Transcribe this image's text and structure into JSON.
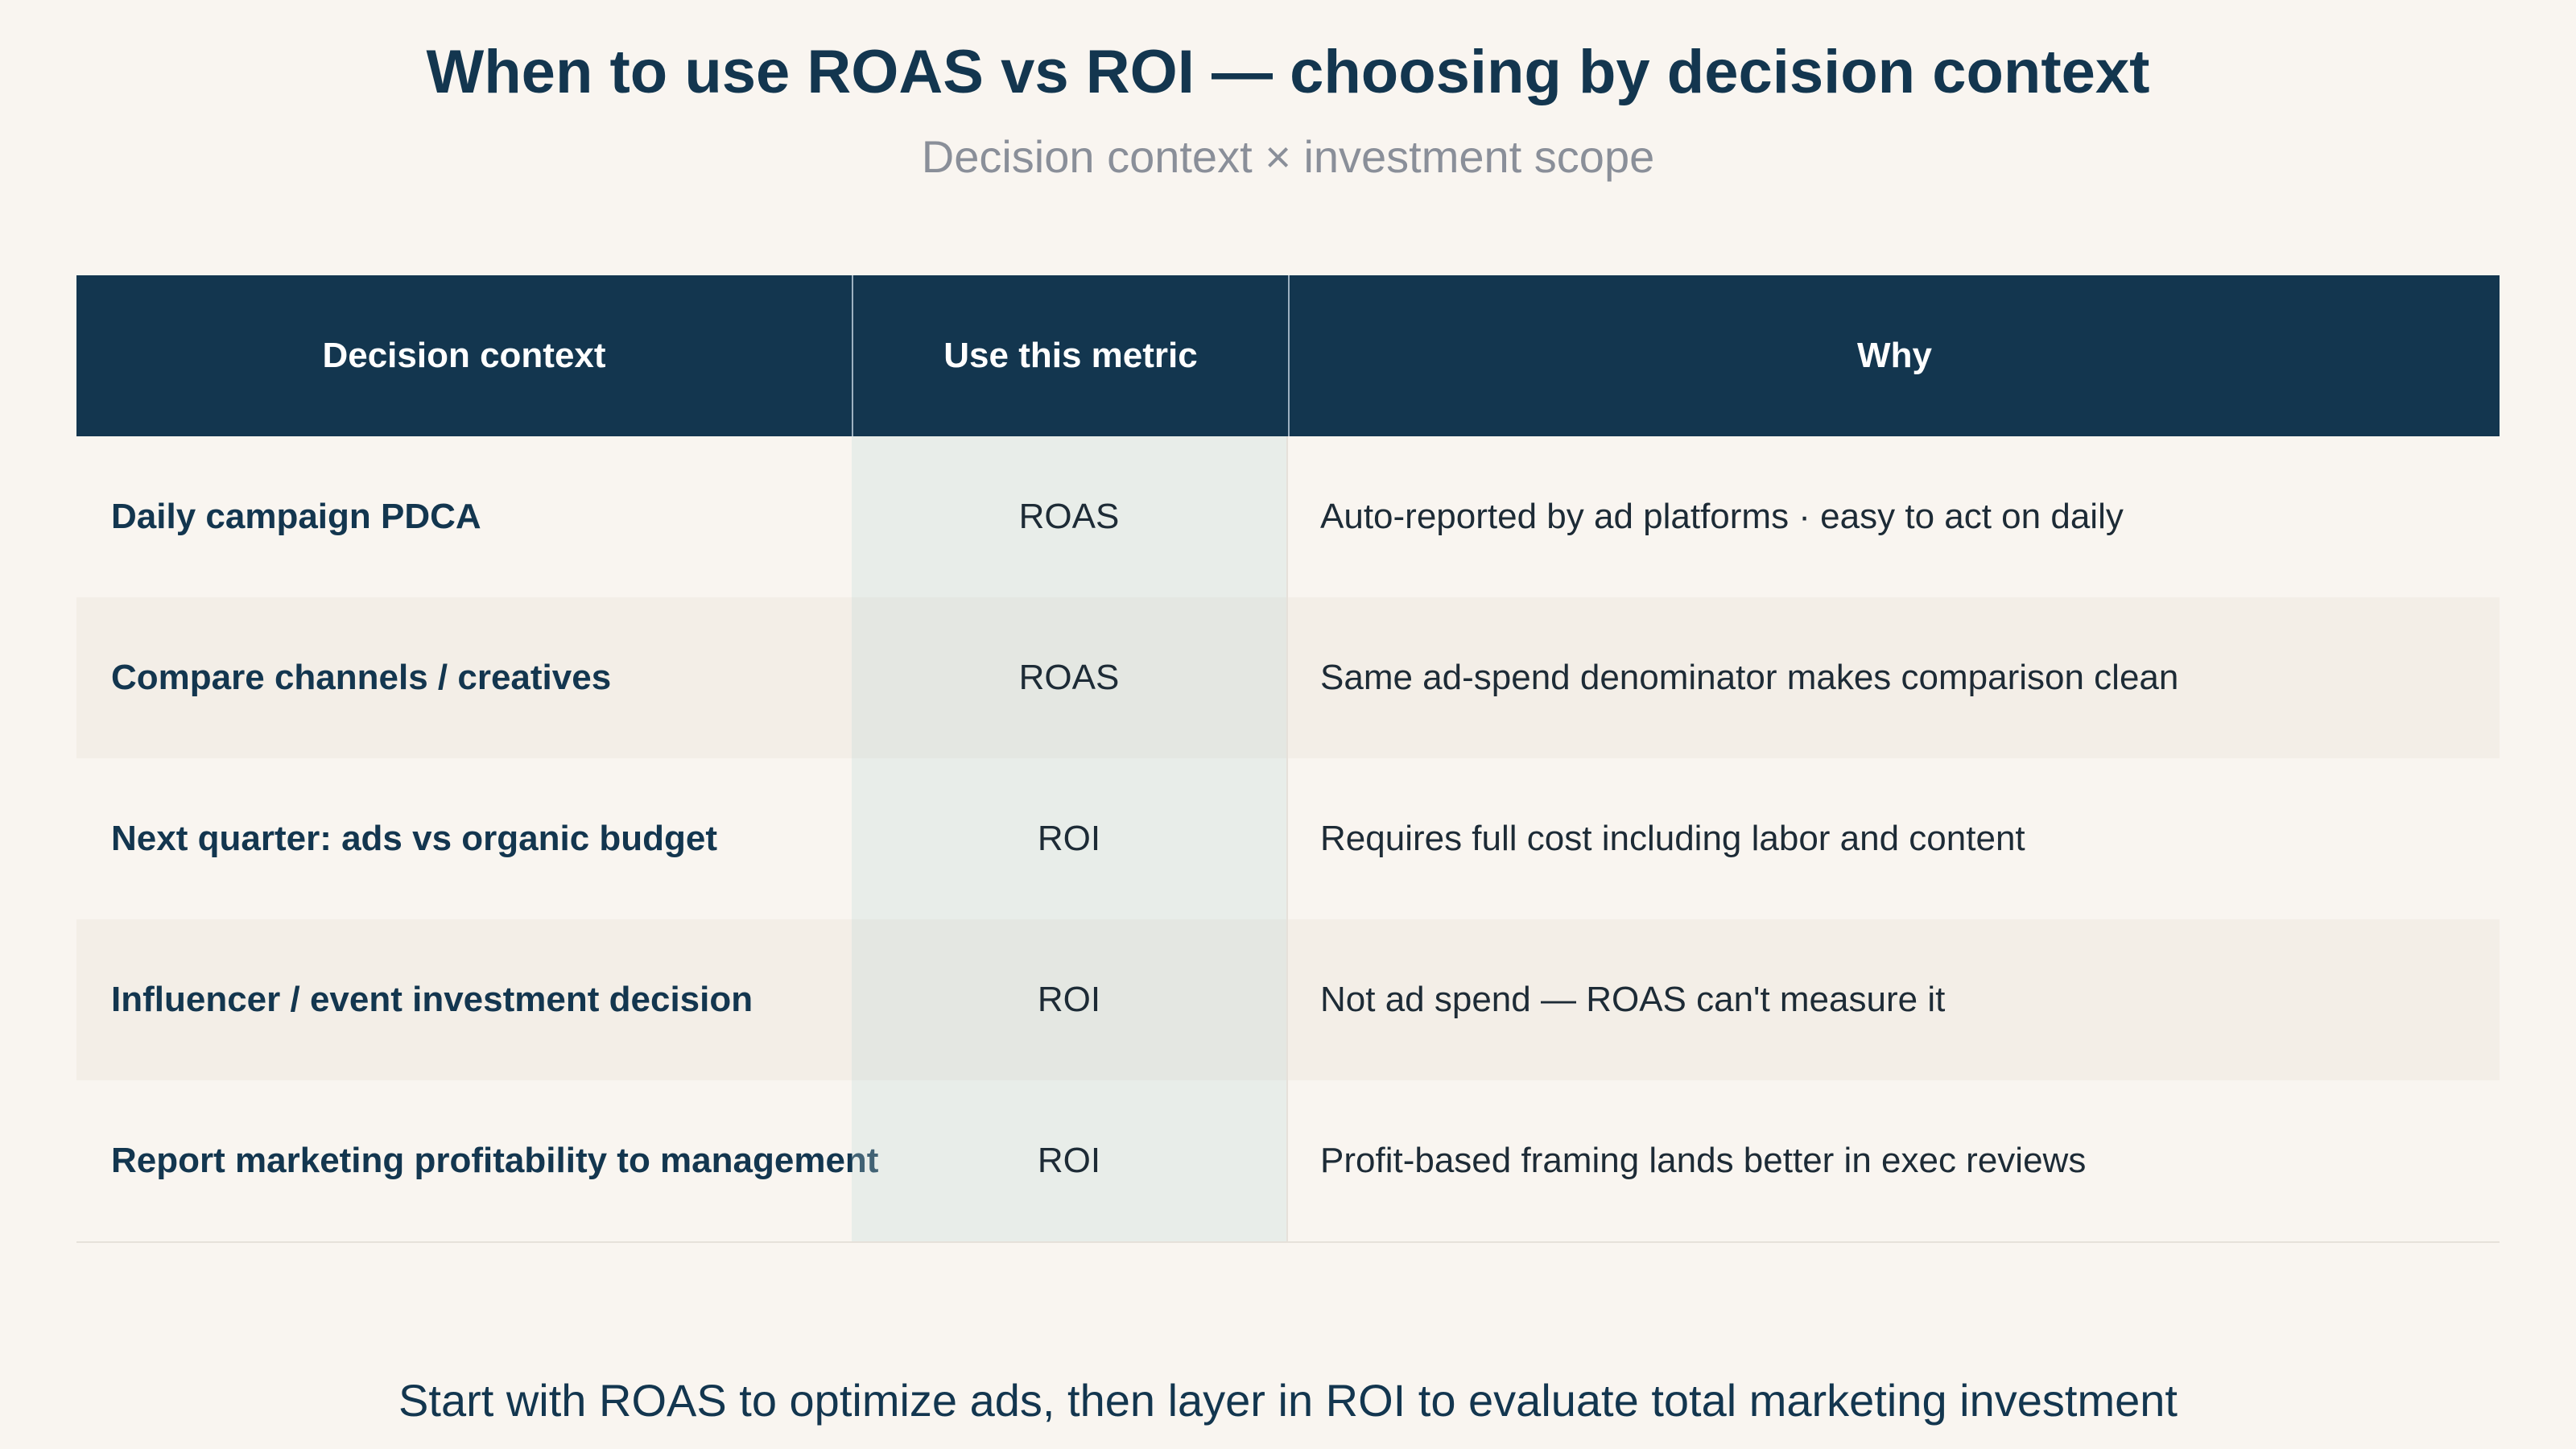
{
  "title": "When to use ROAS vs ROI — choosing by decision context",
  "subtitle": "Decision context × investment scope",
  "table": {
    "headers": [
      "Decision context",
      "Use this metric",
      "Why"
    ],
    "rows": [
      {
        "context": "Daily campaign PDCA",
        "metric": "ROAS",
        "why": "Auto-reported by ad platforms · easy to act on daily"
      },
      {
        "context": "Compare channels / creatives",
        "metric": "ROAS",
        "why": "Same ad-spend denominator makes comparison clean"
      },
      {
        "context": "Next quarter: ads vs organic budget",
        "metric": "ROI",
        "why": "Requires full cost including labor and content"
      },
      {
        "context": "Influencer / event investment decision",
        "metric": "ROI",
        "why": "Not ad spend — ROAS can't measure it"
      },
      {
        "context": "Report marketing profitability to management",
        "metric": "ROI",
        "why": "Profit-based framing lands better in exec reviews"
      }
    ]
  },
  "footer": "Start with ROAS to optimize ads, then layer in ROI to evaluate total marketing investment",
  "colors": {
    "header_bg": "#13364f",
    "page_bg": "#f9f5f0",
    "alt_row_bg": "#f3eee7",
    "subtitle": "#8a8f99"
  }
}
